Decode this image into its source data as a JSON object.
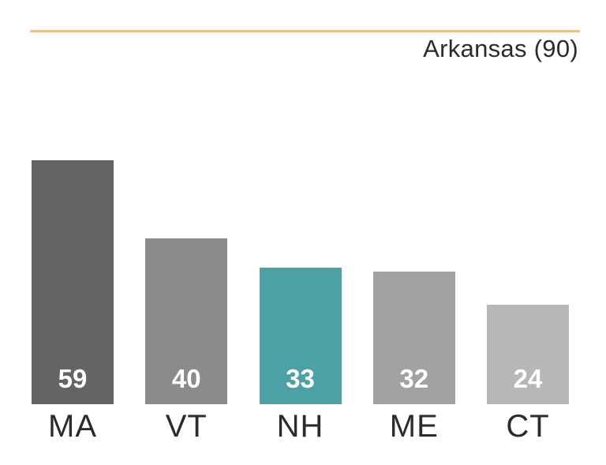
{
  "chart_data": {
    "type": "bar",
    "title": "Arkansas (90)",
    "categories": [
      "MA",
      "VT",
      "NH",
      "ME",
      "CT"
    ],
    "values": [
      59,
      40,
      33,
      32,
      24
    ],
    "series": [
      {
        "name": "Arkansas (90)",
        "values": [
          59,
          40,
          33,
          32,
          24
        ]
      }
    ],
    "bar_colors": [
      "#646464",
      "#8b8b8b",
      "#4da0a4",
      "#a2a2a2",
      "#b7b7b7"
    ],
    "highlighted_category": "NH",
    "highlight_color": "#4da0a4",
    "value_label_color": "#ffffff",
    "text_color": "#2b2b2b",
    "divider_color": "#e9c088",
    "ylim": [
      0,
      59
    ],
    "xlabel": "",
    "ylabel": "",
    "grid": false,
    "legend": false,
    "value_label_position": "inside-bottom"
  }
}
